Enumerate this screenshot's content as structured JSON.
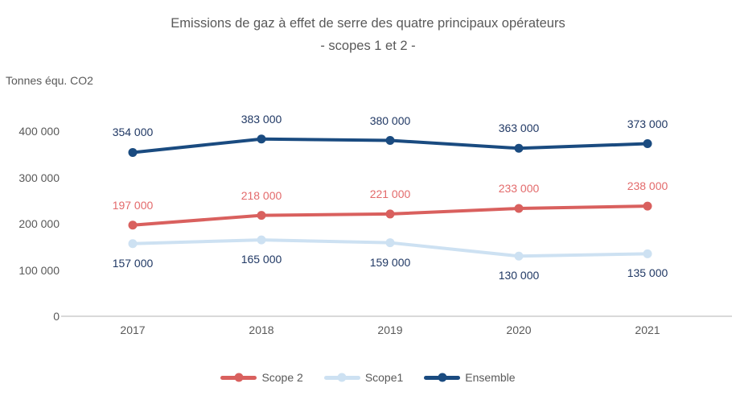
{
  "title": "Emissions de gaz à effet de serre des quatre principaux opérateurs",
  "subtitle": "- scopes 1 et 2 -",
  "unit_label": "Tonnes équ. CO2",
  "colors": {
    "text_gray": "#595959",
    "axis_line": "#D9D9D9",
    "label_navy": "#203864",
    "scope2_red": "#D9605E",
    "scope1_lightblue": "#CDE1F2",
    "ensemble_darkblue": "#1A4B80"
  },
  "chart_data": {
    "type": "line",
    "title": "Emissions de gaz à effet de serre des quatre principaux opérateurs - scopes 1 et 2 -",
    "xlabel": "",
    "ylabel": "Tonnes équ. CO2",
    "categories": [
      "2017",
      "2018",
      "2019",
      "2020",
      "2021"
    ],
    "series": [
      {
        "name": "Scope 2",
        "color": "#D9605E",
        "label_color": "#E36A6B",
        "label_position": "above",
        "values": [
          197000,
          218000,
          221000,
          233000,
          238000
        ],
        "labels": [
          "197 000",
          "218 000",
          "221 000",
          "233 000",
          "238 000"
        ]
      },
      {
        "name": "Scope1",
        "color": "#CDE1F2",
        "label_color": "#203864",
        "label_position": "below",
        "values": [
          157000,
          165000,
          159000,
          130000,
          135000
        ],
        "labels": [
          "157 000",
          "165 000",
          "159 000",
          "130 000",
          "135 000"
        ]
      },
      {
        "name": "Ensemble",
        "color": "#1A4B80",
        "label_color": "#203864",
        "label_position": "above",
        "values": [
          354000,
          383000,
          380000,
          363000,
          373000
        ],
        "labels": [
          "354 000",
          "383 000",
          "380 000",
          "363 000",
          "373 000"
        ]
      }
    ],
    "yticks": {
      "values": [
        0,
        100000,
        200000,
        300000,
        400000
      ],
      "labels": [
        "0",
        "100 000",
        "200 000",
        "300 000",
        "400 000"
      ]
    },
    "ylim": [
      0,
      450000
    ],
    "grid": false,
    "legend_position": "bottom",
    "legend_order": [
      "Scope 2",
      "Scope1",
      "Ensemble"
    ]
  }
}
